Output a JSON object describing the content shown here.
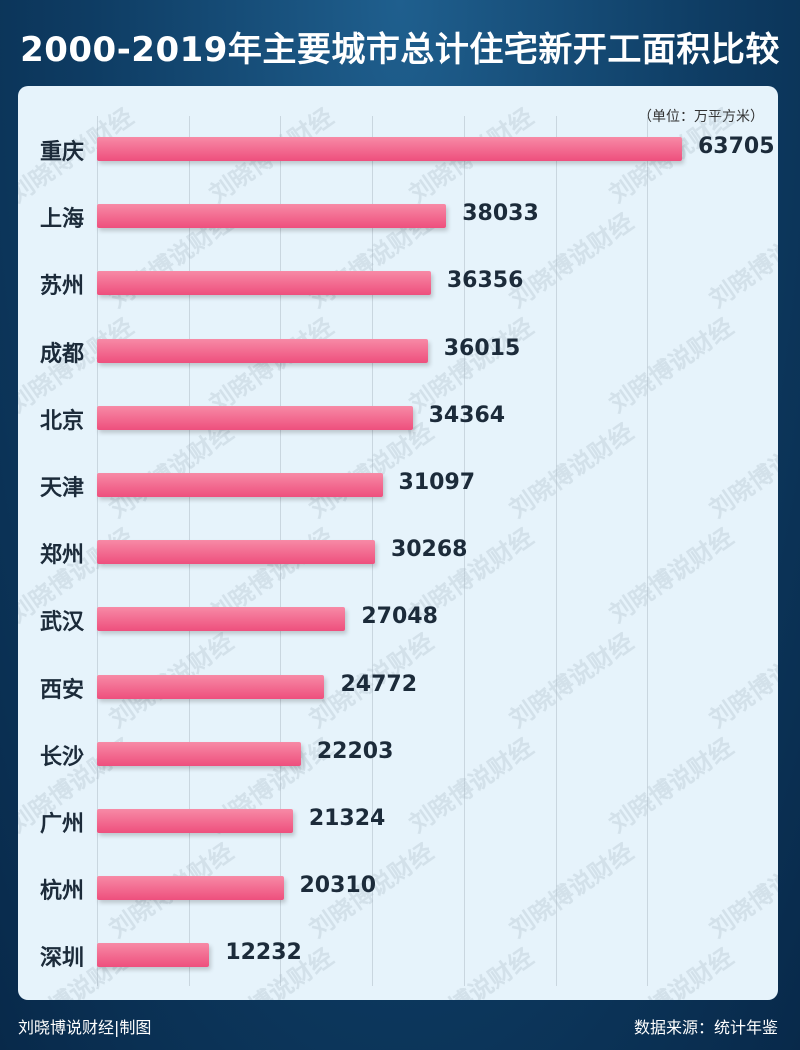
{
  "header": {
    "title": "2000-2019年主要城市总计住宅新开工面积比较"
  },
  "unit_label": "（单位：万平方米）",
  "watermark_text": "刘晓博说财经",
  "footer": {
    "left": "刘晓博说财经|制图",
    "right": "数据来源：统计年鉴"
  },
  "chart_data": {
    "type": "bar",
    "orientation": "horizontal",
    "categories": [
      "重庆",
      "上海",
      "苏州",
      "成都",
      "北京",
      "天津",
      "郑州",
      "武汉",
      "西安",
      "长沙",
      "广州",
      "杭州",
      "深圳"
    ],
    "values": [
      63705,
      38033,
      36356,
      36015,
      34364,
      31097,
      30268,
      27048,
      24772,
      22203,
      21324,
      20310,
      12232
    ],
    "title": "2000-2019年主要城市总计住宅新开工面积比较",
    "unit": "（单位：万平方米）",
    "xlim": [
      0,
      70000
    ],
    "grid": true,
    "bar_color": "#ee4f7d"
  }
}
